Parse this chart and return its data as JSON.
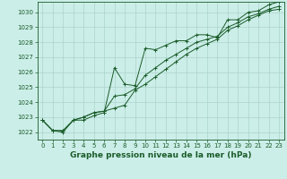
{
  "title": "Graphe pression niveau de la mer (hPa)",
  "bg_color": "#cceee8",
  "grid_color": "#aad4cc",
  "line_color": "#1a5c2a",
  "xlim": [
    -0.5,
    23.5
  ],
  "ylim": [
    1021.5,
    1030.7
  ],
  "yticks": [
    1022,
    1023,
    1024,
    1025,
    1026,
    1027,
    1028,
    1029,
    1030
  ],
  "xticks": [
    0,
    1,
    2,
    3,
    4,
    5,
    6,
    7,
    8,
    9,
    10,
    11,
    12,
    13,
    14,
    15,
    16,
    17,
    18,
    19,
    20,
    21,
    22,
    23
  ],
  "series1": [
    1022.8,
    1022.1,
    1022.0,
    1022.8,
    1022.8,
    1023.1,
    1023.3,
    1026.3,
    1025.2,
    1025.1,
    1027.6,
    1027.5,
    1027.8,
    1028.1,
    1028.1,
    1028.5,
    1028.5,
    1028.3,
    1029.5,
    1029.5,
    1030.0,
    1030.1,
    1030.5,
    1030.7
  ],
  "series2": [
    1022.8,
    1022.1,
    1022.1,
    1022.8,
    1023.0,
    1023.3,
    1023.4,
    1023.6,
    1023.8,
    1024.8,
    1025.2,
    1025.7,
    1026.2,
    1026.7,
    1027.2,
    1027.6,
    1027.9,
    1028.2,
    1028.8,
    1029.1,
    1029.5,
    1029.8,
    1030.1,
    1030.2
  ],
  "series3": [
    1022.8,
    1022.1,
    1022.1,
    1022.8,
    1023.0,
    1023.3,
    1023.4,
    1024.4,
    1024.5,
    1024.9,
    1025.8,
    1026.3,
    1026.8,
    1027.2,
    1027.6,
    1028.0,
    1028.2,
    1028.4,
    1029.0,
    1029.3,
    1029.7,
    1029.9,
    1030.2,
    1030.4
  ],
  "title_fontsize": 6.5,
  "tick_fontsize": 5
}
